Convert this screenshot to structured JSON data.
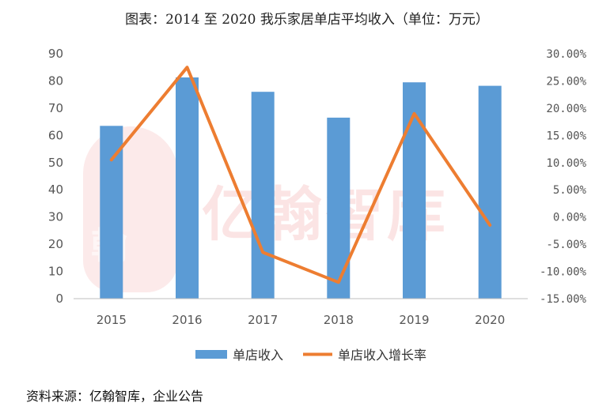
{
  "page": {
    "title": "图表：2014 至 2020 我乐家居单店平均收入（单位：万元）",
    "source": "资料来源：亿翰智库，企业公告",
    "watermark_text": "亿翰智库",
    "watermark_logo_text": "翰"
  },
  "chart_data": {
    "type": "bar",
    "title": "图表：2014 至 2020 我乐家居单店平均收入（单位：万元）",
    "categories": [
      "2015",
      "2016",
      "2017",
      "2018",
      "2019",
      "2020"
    ],
    "series": [
      {
        "name": "单店收入",
        "type": "bar",
        "axis": "left",
        "color": "#5B9BD5",
        "values": [
          63.5,
          81.3,
          76,
          66.5,
          79.5,
          78.2
        ]
      },
      {
        "name": "单店收入增长率",
        "type": "line",
        "axis": "right",
        "color": "#ED7D31",
        "values": [
          10.5,
          27.5,
          -6.5,
          -12.0,
          19.0,
          -1.5
        ]
      }
    ],
    "y_left": {
      "min": 0,
      "max": 90,
      "step": 10,
      "ticks": [
        "0",
        "10",
        "20",
        "30",
        "40",
        "50",
        "60",
        "70",
        "80",
        "90"
      ]
    },
    "y_right": {
      "min": -15,
      "max": 30,
      "step": 5,
      "ticks": [
        "-15.00%",
        "-10.00%",
        "-5.00%",
        "0.00%",
        "5.00%",
        "10.00%",
        "15.00%",
        "20.00%",
        "25.00%",
        "30.00%"
      ]
    },
    "grid": false,
    "legend_position": "bottom"
  }
}
